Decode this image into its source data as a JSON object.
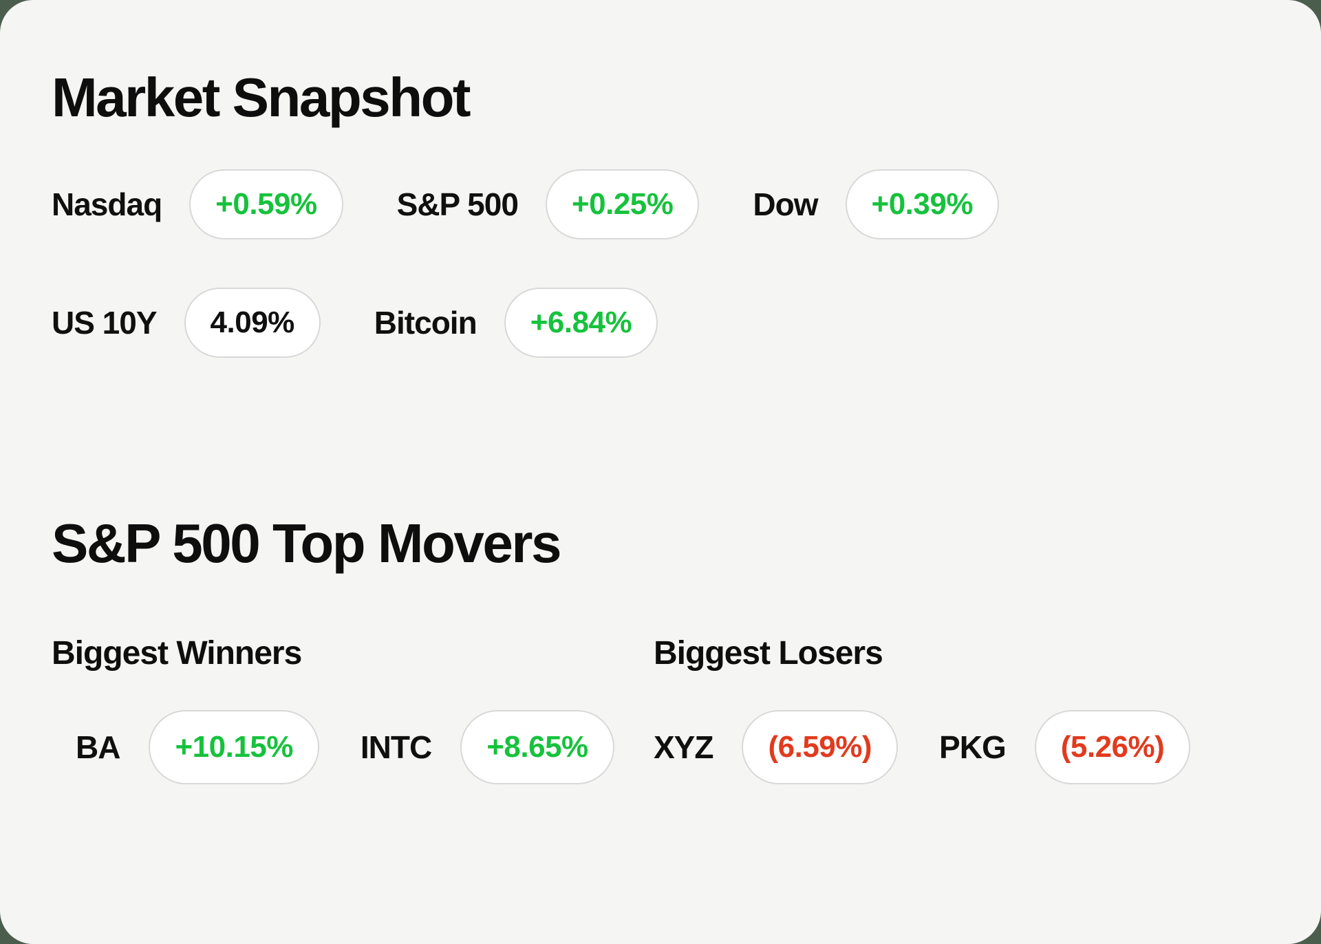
{
  "colors": {
    "outer_background": "#4b5d4c",
    "card_background": "#f5f5f3",
    "positive": "#16c23c",
    "negative": "#e23a1d",
    "neutral_text": "#101010",
    "pill_border": "#d8d8d8",
    "pill_background": "#ffffff"
  },
  "market_snapshot": {
    "title": "Market Snapshot",
    "rows": [
      [
        {
          "label": "Nasdaq",
          "value": "+0.59%",
          "direction": "positive"
        },
        {
          "label": "S&P 500",
          "value": "+0.25%",
          "direction": "positive"
        },
        {
          "label": "Dow",
          "value": "+0.39%",
          "direction": "positive"
        }
      ],
      [
        {
          "label": "US 10Y",
          "value": "4.09%",
          "direction": "neutral"
        },
        {
          "label": "Bitcoin",
          "value": "+6.84%",
          "direction": "positive"
        }
      ]
    ]
  },
  "top_movers": {
    "title": "S&P 500 Top Movers",
    "winners": {
      "heading": "Biggest Winners",
      "items": [
        {
          "ticker": "BA",
          "value": "+10.15%",
          "direction": "positive"
        },
        {
          "ticker": "INTC",
          "value": "+8.65%",
          "direction": "positive"
        }
      ]
    },
    "losers": {
      "heading": "Biggest Losers",
      "items": [
        {
          "ticker": "XYZ",
          "value": "(6.59%)",
          "direction": "negative"
        },
        {
          "ticker": "PKG",
          "value": "(5.26%)",
          "direction": "negative"
        }
      ]
    }
  }
}
